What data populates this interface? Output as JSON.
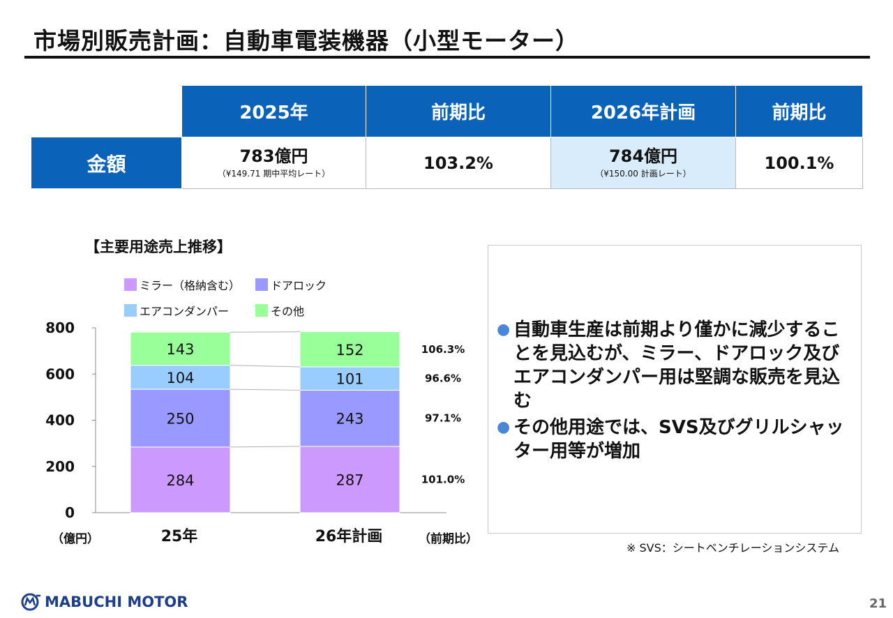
{
  "title": "市場別販売計画：自動車電装機器（小型モーター）",
  "table": {
    "headers": [
      "2025年",
      "前期比",
      "2026年計画",
      "前期比"
    ],
    "row_label": "金額",
    "cells": {
      "y2025": "783億円",
      "y2025_sub": "（¥149.71 期中平均レート）",
      "yoy1": "103.2%",
      "y2026": "784億円",
      "y2026_sub": "（¥150.00 計画レート）",
      "yoy2": "100.1%"
    }
  },
  "chart_heading": "【主要用途売上推移】",
  "chart_data": {
    "type": "bar",
    "stacked": true,
    "categories": [
      "25年",
      "26年計画"
    ],
    "series": [
      {
        "name": "ミラー（格納含む）",
        "color": "#cc99ff",
        "values": [
          284,
          287
        ],
        "yoy": "101.0%"
      },
      {
        "name": "ドアロック",
        "color": "#9999ff",
        "values": [
          250,
          243
        ],
        "yoy": "97.1%"
      },
      {
        "name": "エアコンダンパー",
        "color": "#99ccff",
        "values": [
          104,
          101
        ],
        "yoy": "96.6%"
      },
      {
        "name": "その他",
        "color": "#99ff99",
        "values": [
          143,
          152
        ],
        "yoy": "106.3%"
      }
    ],
    "ylim": [
      0,
      800
    ],
    "yticks": [
      0,
      200,
      400,
      600,
      800
    ],
    "y_unit_label": "（億円）",
    "yoy_label": "（前期比）",
    "legend_position": "top"
  },
  "notes": [
    "自動車生産は前期より僅かに減少することを見込むが、ミラー、ドアロック及びエアコンダンパー用は堅調な販売を見込む",
    "その他用途では、SVS及びグリルシャッター用等が増加"
  ],
  "footnote": "※ SVS：シートベンチレーションシステム",
  "logo": "MABUCHI MOTOR",
  "page_number": "21",
  "colors": {
    "header_blue": "#0a63b8",
    "highlight": "#d9ecfc",
    "bullet": "#4a86d8"
  }
}
